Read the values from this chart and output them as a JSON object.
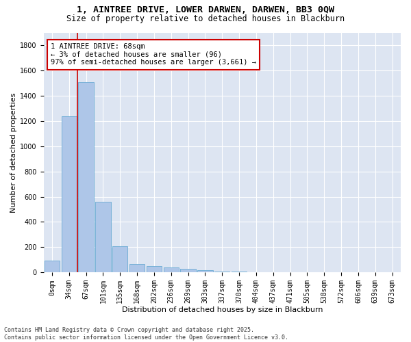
{
  "title1": "1, AINTREE DRIVE, LOWER DARWEN, DARWEN, BB3 0QW",
  "title2": "Size of property relative to detached houses in Blackburn",
  "xlabel": "Distribution of detached houses by size in Blackburn",
  "ylabel": "Number of detached properties",
  "bar_color": "#aec6e8",
  "bar_edge_color": "#6aaad4",
  "vline_color": "#cc0000",
  "vline_x_index": 2,
  "categories": [
    "0sqm",
    "34sqm",
    "67sqm",
    "101sqm",
    "135sqm",
    "168sqm",
    "202sqm",
    "236sqm",
    "269sqm",
    "303sqm",
    "337sqm",
    "370sqm",
    "404sqm",
    "437sqm",
    "471sqm",
    "505sqm",
    "538sqm",
    "572sqm",
    "606sqm",
    "639sqm",
    "673sqm"
  ],
  "values": [
    96,
    1235,
    1510,
    560,
    210,
    68,
    48,
    38,
    30,
    18,
    10,
    5,
    2,
    1,
    0,
    0,
    0,
    0,
    0,
    0,
    0
  ],
  "ylim": [
    0,
    1900
  ],
  "yticks": [
    0,
    200,
    400,
    600,
    800,
    1000,
    1200,
    1400,
    1600,
    1800
  ],
  "annotation_text": "1 AINTREE DRIVE: 68sqm\n← 3% of detached houses are smaller (96)\n97% of semi-detached houses are larger (3,661) →",
  "bg_color": "#dde5f2",
  "footer1": "Contains HM Land Registry data © Crown copyright and database right 2025.",
  "footer2": "Contains public sector information licensed under the Open Government Licence v3.0.",
  "title_fontsize": 9.5,
  "subtitle_fontsize": 8.5,
  "axis_label_fontsize": 8,
  "tick_fontsize": 7,
  "annotation_fontsize": 7.5,
  "footer_fontsize": 6
}
